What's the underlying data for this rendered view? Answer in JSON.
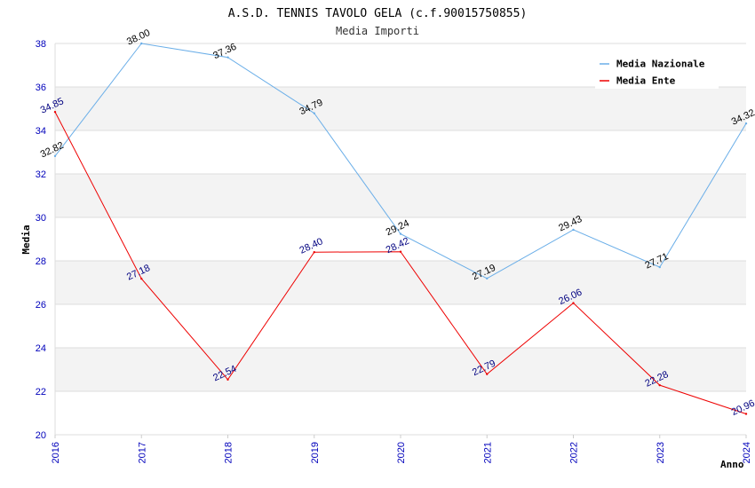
{
  "chart_data": {
    "type": "line",
    "title": "A.S.D. TENNIS TAVOLO GELA (c.f.90015750855)",
    "subtitle": "Media Importi",
    "xlabel": "Anno",
    "ylabel": "Media",
    "categories": [
      "2016",
      "2017",
      "2018",
      "2019",
      "2020",
      "2021",
      "2022",
      "2023",
      "2024"
    ],
    "ylim": [
      20,
      38
    ],
    "yticks": [
      "20",
      "22",
      "24",
      "26",
      "28",
      "30",
      "32",
      "34",
      "36",
      "38"
    ],
    "grid": true,
    "legend_position": "top-right",
    "series": [
      {
        "name": "Media Nazionale",
        "color": "#6aaee8",
        "label_color": "#000000",
        "values": [
          32.82,
          38.0,
          37.36,
          34.79,
          29.24,
          27.19,
          29.43,
          27.71,
          34.32
        ],
        "labels": [
          "32.82",
          "38.00",
          "37.36",
          "34.79",
          "29.24",
          "27.19",
          "29.43",
          "27.71",
          "34.32"
        ]
      },
      {
        "name": "Media Ente",
        "color": "#ee0000",
        "label_color": "#000080",
        "values": [
          34.85,
          27.18,
          22.54,
          28.4,
          28.42,
          22.79,
          26.06,
          22.28,
          20.96
        ],
        "labels": [
          "34.85",
          "27.18",
          "22.54",
          "28.40",
          "28.42",
          "22.79",
          "26.06",
          "22.28",
          "20.96"
        ]
      }
    ]
  }
}
